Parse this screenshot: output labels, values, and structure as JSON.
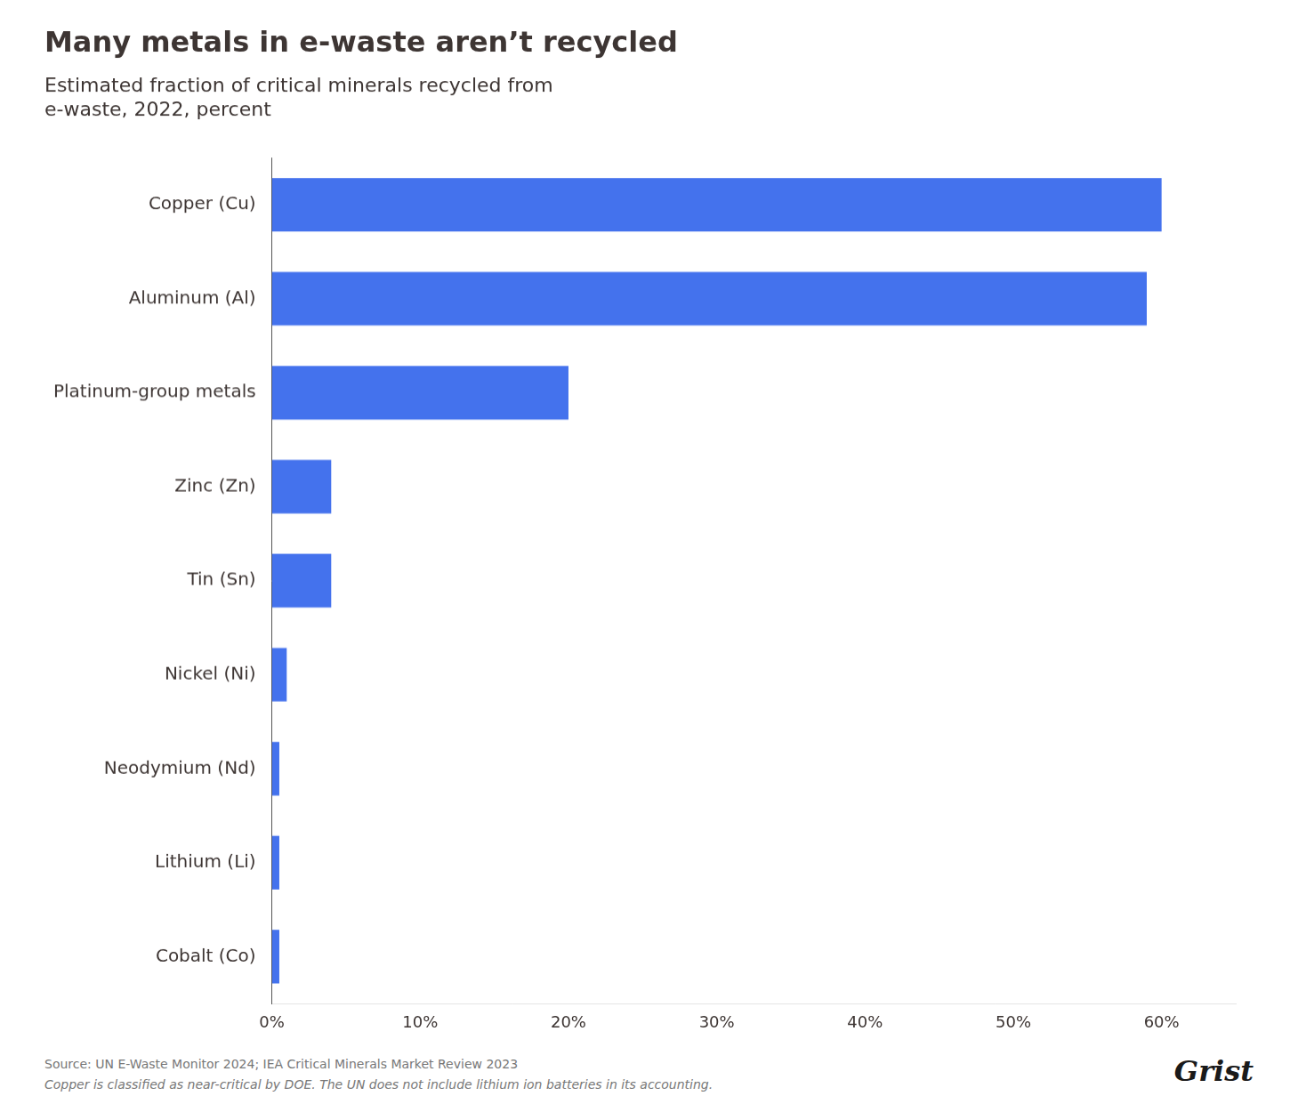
{
  "chart_data": {
    "type": "bar",
    "orientation": "horizontal",
    "title": "Many metals in e-waste aren’t recycled",
    "subtitle": "Estimated fraction of critical minerals recycled from\ne-waste, 2022, percent",
    "categories": [
      "Cobalt (Co)",
      "Lithium (Li)",
      "Neodymium (Nd)",
      "Nickel (Ni)",
      "Tin (Sn)",
      "Zinc (Zn)",
      "Platinum-group metals",
      "Aluminum (Al)",
      "Copper (Cu)"
    ],
    "values": [
      0.5,
      0.5,
      0.5,
      1.0,
      4.0,
      4.0,
      20.0,
      59.0,
      60.0
    ],
    "color": "#4472ED",
    "xlim": [
      0,
      65
    ],
    "xticks": [
      {
        "value": 0,
        "label": "0%"
      },
      {
        "value": 10,
        "label": "10%"
      },
      {
        "value": 20,
        "label": "20%"
      },
      {
        "value": 30,
        "label": "30%"
      },
      {
        "value": 40,
        "label": "40%"
      },
      {
        "value": 50,
        "label": "50%"
      },
      {
        "value": 60,
        "label": "60%"
      }
    ],
    "grid": false,
    "annotations": [
      "Source: UN E-Waste Monitor 2024; IEA Critical Minerals Market Review 2023",
      "Copper is classified as near-critical by DOE. The UN does not include lithium ion batteries in its accounting.",
      "Grist"
    ]
  }
}
